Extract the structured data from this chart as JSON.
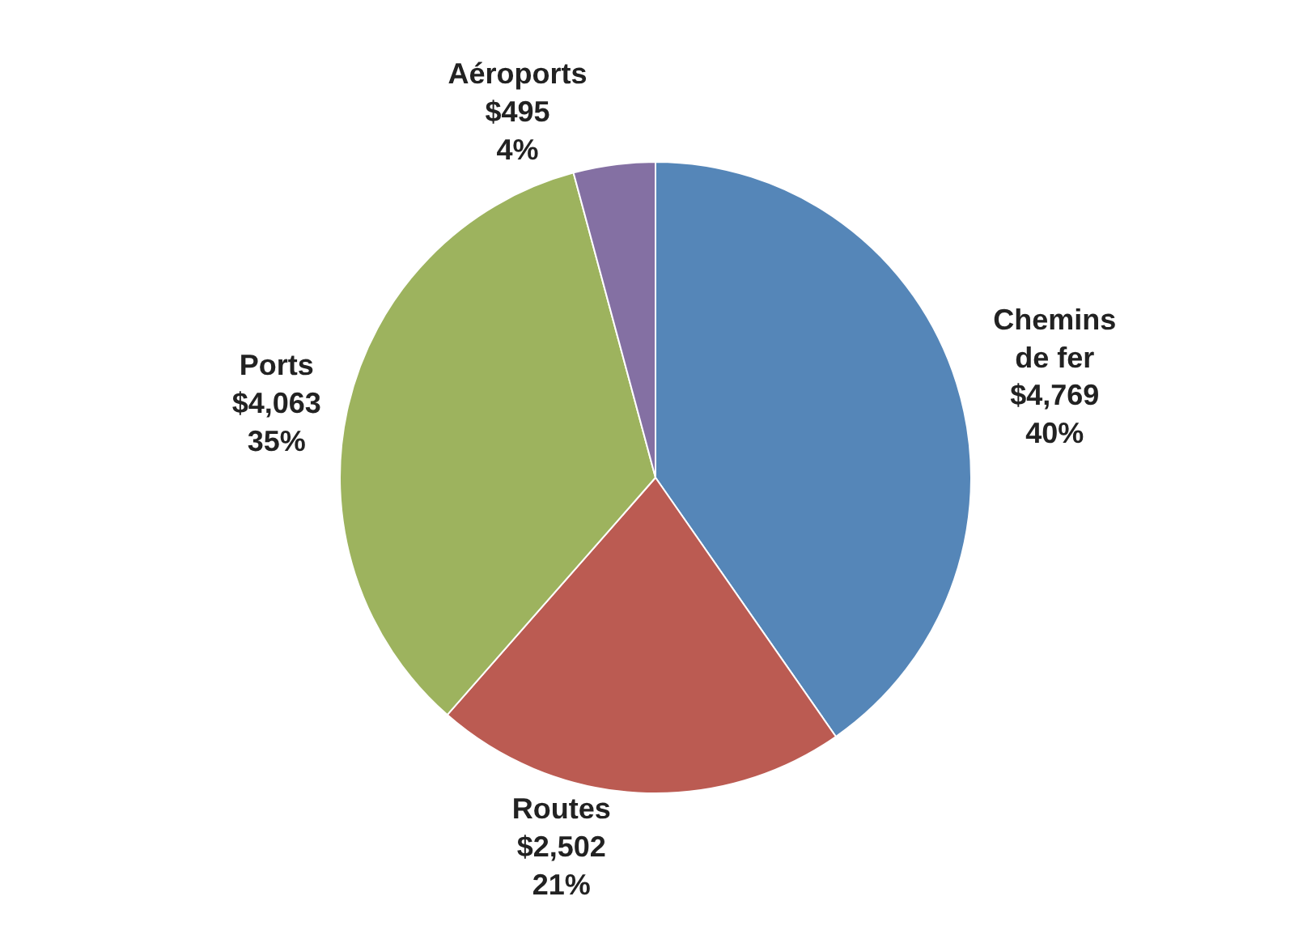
{
  "chart_data": {
    "type": "pie",
    "categories": [
      "Chemins de fer",
      "Routes",
      "Ports",
      "Aéroports"
    ],
    "values": [
      4769,
      2502,
      4063,
      495
    ],
    "value_labels": [
      "$4,769\n40%",
      "$2,502\n21%",
      "$4,063\n35%",
      "$495\n4%"
    ],
    "colors": [
      "#5586b8",
      "#bb5b52",
      "#9db35e",
      "#8470a3"
    ],
    "legend": false
  }
}
